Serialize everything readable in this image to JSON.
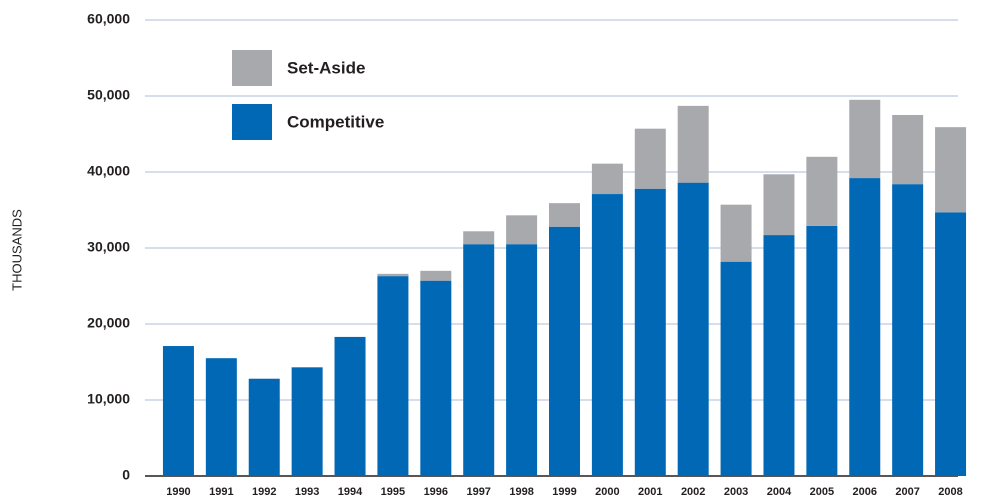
{
  "chart_data": {
    "type": "stacked-bar",
    "y_label": "THOUSANDS",
    "categories": [
      "1990",
      "1991",
      "1992",
      "1993",
      "1994",
      "1995",
      "1996",
      "1997",
      "1998",
      "1999",
      "2000",
      "2001",
      "2002",
      "2003",
      "2004",
      "2005",
      "2006",
      "2007",
      "2008"
    ],
    "series": [
      {
        "name": "Competitive",
        "color": "#0068b4",
        "values": [
          17100,
          15500,
          12800,
          14300,
          18300,
          26300,
          25700,
          30500,
          30500,
          32800,
          37100,
          37800,
          38600,
          28200,
          31700,
          32900,
          39200,
          38400,
          34700
        ]
      },
      {
        "name": "Set-Aside",
        "color": "#a8a9ad",
        "values": [
          0,
          0,
          0,
          0,
          0,
          300,
          1300,
          1700,
          3800,
          3100,
          4000,
          7900,
          10100,
          7500,
          8000,
          9100,
          10300,
          9100,
          11200
        ]
      }
    ],
    "ylim": [
      0,
      60000
    ],
    "yticks": [
      0,
      {
        "value": 10000,
        "label": "10,000"
      },
      {
        "value": 20000,
        "label": "20,000"
      },
      {
        "value": 30000,
        "label": "30,000"
      },
      {
        "value": 40000,
        "label": "40,000"
      },
      {
        "value": 50000,
        "label": "50,000"
      },
      {
        "value": 60000,
        "label": "60,000"
      }
    ],
    "grid": true
  }
}
